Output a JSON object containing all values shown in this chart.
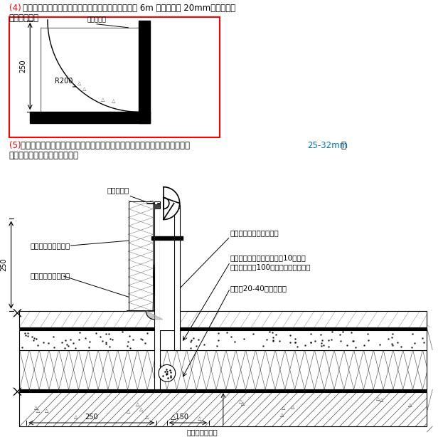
{
  "text4_prefix": "(4) ",
  "text4_body": "屋面泻水保护做法见下图，分格缝同屋面防水保护层 6m 一道，缝宽 20mm，内嵌聚胺",
  "text4_line2": "脂防水油膏。",
  "label_细石混凝土": "细石混凝土",
  "label_R200": "R200",
  "label_250": "250",
  "text5_prefix": "(5)",
  "text5_body": "屋面透气孔：当保温层含水量较大，难以干燥时可以埋设排气管。排气管直径 ",
  "text5_blue": "25-32mm",
  "text5_end": "，",
  "text5_line2": "带孔与立管相连。做法如下图：",
  "label_建筑密封胶": "建筑密封胶",
  "label_不锈钢箍": "不锈销箍，螺栀收紧",
  "label_锥形细石": "锥形细石混凝土保护",
  "label_转角处": "转角处水泥砂浆抒成圆弧",
  "label_平卧排气管1": "平卧排气管，管壁开孔直径10，梅花",
  "label_平卧排气管2": "形布置，孔距100，与立管用三通连接",
  "label_气道": "气道（20-40碎石填满）",
  "label_250_dim": "250",
  "label_150_dim": "△150",
  "label_附加卷材": "附加卷材防水层",
  "label_dim250_left": "250",
  "color_red": "#FF0000",
  "color_blue": "#0070C0",
  "color_black": "#000000",
  "color_white": "#FFFFFF"
}
